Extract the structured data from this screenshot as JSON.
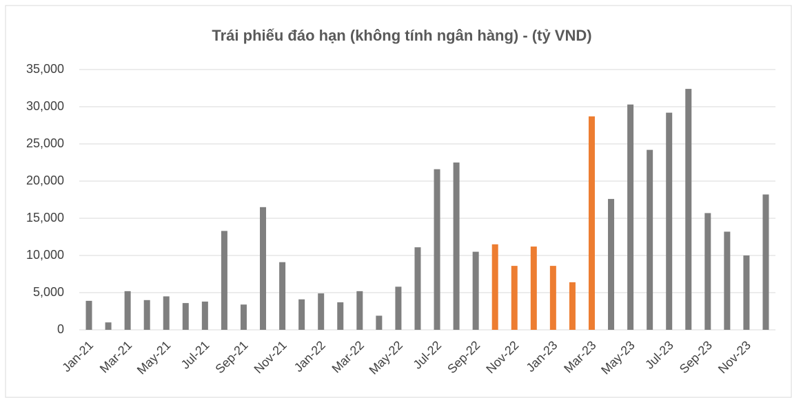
{
  "chart_data": {
    "type": "bar",
    "title": "Trái phiếu đáo hạn (không tính ngân hàng) - (tỷ VND)",
    "categories": [
      "Jan-21",
      null,
      "Mar-21",
      null,
      "May-21",
      null,
      "Jul-21",
      null,
      "Sep-21",
      null,
      "Nov-21",
      null,
      "Jan-22",
      null,
      "Mar-22",
      null,
      "May-22",
      null,
      "Jul-22",
      null,
      "Sep-22",
      null,
      "Nov-22",
      null,
      "Jan-23",
      null,
      "Mar-23",
      null,
      "May-23",
      null,
      "Jul-23",
      null,
      "Sep-23",
      null,
      "Nov-23",
      null
    ],
    "values": [
      3900,
      1000,
      5200,
      4000,
      4500,
      3600,
      3800,
      13300,
      3400,
      16500,
      9100,
      4100,
      4900,
      3700,
      5200,
      1900,
      5800,
      11100,
      21600,
      22500,
      10500,
      11500,
      8600,
      11200,
      8600,
      6400,
      28700,
      17600,
      30300,
      24200,
      29200,
      32400,
      15700,
      13200,
      10000,
      18200
    ],
    "colors": [
      "#7f7f7f",
      "#7f7f7f",
      "#7f7f7f",
      "#7f7f7f",
      "#7f7f7f",
      "#7f7f7f",
      "#7f7f7f",
      "#7f7f7f",
      "#7f7f7f",
      "#7f7f7f",
      "#7f7f7f",
      "#7f7f7f",
      "#7f7f7f",
      "#7f7f7f",
      "#7f7f7f",
      "#7f7f7f",
      "#7f7f7f",
      "#7f7f7f",
      "#7f7f7f",
      "#7f7f7f",
      "#7f7f7f",
      "#ed7d31",
      "#ed7d31",
      "#ed7d31",
      "#ed7d31",
      "#ed7d31",
      "#ed7d31",
      "#7f7f7f",
      "#7f7f7f",
      "#7f7f7f",
      "#7f7f7f",
      "#7f7f7f",
      "#7f7f7f",
      "#7f7f7f",
      "#7f7f7f",
      "#7f7f7f"
    ],
    "ylim": [
      0,
      35000
    ],
    "yticks": [
      0,
      {
        "value": 5000,
        "label": "5,000"
      },
      {
        "value": 10000,
        "label": "10,000"
      },
      {
        "value": 15000,
        "label": "15,000"
      },
      {
        "value": 20000,
        "label": "20,000"
      },
      {
        "value": 25000,
        "label": "25,000"
      },
      {
        "value": 30000,
        "label": "30,000"
      },
      {
        "value": 35000,
        "label": "35,000"
      }
    ],
    "grid": true
  }
}
